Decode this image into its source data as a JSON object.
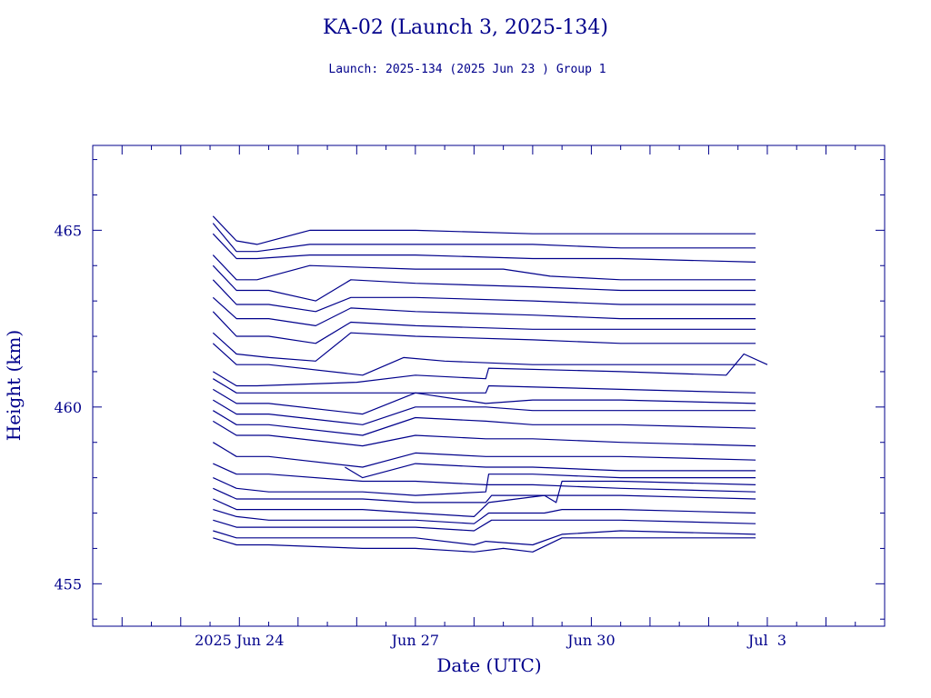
{
  "chart_data": {
    "type": "line",
    "title": "KA-02 (Launch 3, 2025-134)",
    "subtitle": "Launch: 2025-134  (2025 Jun 23 )  Group 1",
    "xlabel": "Date (UTC)",
    "ylabel": "Height (km)",
    "x_unit": "days from 2025 Jun 24 00:00 UTC",
    "xlim": [
      -2.5,
      11
    ],
    "ylim": [
      453.8,
      467.4
    ],
    "x_ticks": [
      {
        "x": 0,
        "label": "2025 Jun 24"
      },
      {
        "x": 3,
        "label": "Jun 27"
      },
      {
        "x": 6,
        "label": "Jun 30"
      },
      {
        "x": 9,
        "label": "Jul  3"
      }
    ],
    "y_ticks": [
      {
        "y": 455,
        "label": "455"
      },
      {
        "y": 460,
        "label": "460"
      },
      {
        "y": 465,
        "label": "465"
      }
    ],
    "grid": false,
    "color": "#00008b",
    "series": [
      {
        "values": [
          [
            -0.45,
            465.4
          ],
          [
            -0.05,
            464.7
          ],
          [
            0.3,
            464.6
          ],
          [
            1.2,
            465.0
          ],
          [
            3.0,
            465.0
          ],
          [
            5.0,
            464.9
          ],
          [
            6.5,
            464.9
          ],
          [
            8.8,
            464.9
          ]
        ]
      },
      {
        "values": [
          [
            -0.45,
            465.2
          ],
          [
            -0.05,
            464.4
          ],
          [
            0.3,
            464.4
          ],
          [
            1.2,
            464.6
          ],
          [
            3.0,
            464.6
          ],
          [
            5.0,
            464.6
          ],
          [
            6.5,
            464.5
          ],
          [
            8.8,
            464.5
          ]
        ]
      },
      {
        "values": [
          [
            -0.45,
            464.9
          ],
          [
            -0.05,
            464.2
          ],
          [
            0.3,
            464.2
          ],
          [
            1.2,
            464.3
          ],
          [
            3.0,
            464.3
          ],
          [
            5.0,
            464.2
          ],
          [
            6.5,
            464.2
          ],
          [
            8.8,
            464.1
          ]
        ]
      },
      {
        "values": [
          [
            -0.45,
            464.3
          ],
          [
            -0.05,
            463.6
          ],
          [
            0.3,
            463.6
          ],
          [
            1.2,
            464.0
          ],
          [
            3.0,
            463.9
          ],
          [
            4.5,
            463.9
          ],
          [
            5.3,
            463.7
          ],
          [
            6.5,
            463.6
          ],
          [
            8.8,
            463.6
          ]
        ]
      },
      {
        "values": [
          [
            -0.45,
            464.0
          ],
          [
            -0.05,
            463.3
          ],
          [
            0.5,
            463.3
          ],
          [
            1.3,
            463.0
          ],
          [
            1.9,
            463.6
          ],
          [
            3.0,
            463.5
          ],
          [
            5.0,
            463.4
          ],
          [
            6.5,
            463.3
          ],
          [
            8.8,
            463.3
          ]
        ]
      },
      {
        "values": [
          [
            -0.45,
            463.6
          ],
          [
            -0.05,
            462.9
          ],
          [
            0.5,
            462.9
          ],
          [
            1.3,
            462.7
          ],
          [
            1.9,
            463.1
          ],
          [
            3.0,
            463.1
          ],
          [
            5.0,
            463.0
          ],
          [
            6.5,
            462.9
          ],
          [
            8.8,
            462.9
          ]
        ]
      },
      {
        "values": [
          [
            -0.45,
            463.1
          ],
          [
            -0.05,
            462.5
          ],
          [
            0.5,
            462.5
          ],
          [
            1.3,
            462.3
          ],
          [
            1.9,
            462.8
          ],
          [
            3.0,
            462.7
          ],
          [
            5.0,
            462.6
          ],
          [
            6.5,
            462.5
          ],
          [
            8.8,
            462.5
          ]
        ]
      },
      {
        "values": [
          [
            -0.45,
            462.7
          ],
          [
            -0.05,
            462.0
          ],
          [
            0.5,
            462.0
          ],
          [
            1.3,
            461.8
          ],
          [
            1.9,
            462.4
          ],
          [
            3.0,
            462.3
          ],
          [
            5.0,
            462.2
          ],
          [
            6.5,
            462.2
          ],
          [
            8.8,
            462.2
          ]
        ]
      },
      {
        "values": [
          [
            -0.45,
            462.1
          ],
          [
            -0.05,
            461.5
          ],
          [
            0.5,
            461.4
          ],
          [
            1.3,
            461.3
          ],
          [
            1.9,
            462.1
          ],
          [
            3.0,
            462.0
          ],
          [
            5.0,
            461.9
          ],
          [
            6.5,
            461.8
          ],
          [
            8.8,
            461.8
          ]
        ]
      },
      {
        "values": [
          [
            -0.45,
            461.8
          ],
          [
            -0.05,
            461.2
          ],
          [
            0.5,
            461.2
          ],
          [
            2.1,
            460.9
          ],
          [
            2.8,
            461.4
          ],
          [
            3.5,
            461.3
          ],
          [
            5.0,
            461.2
          ],
          [
            6.5,
            461.2
          ],
          [
            8.8,
            461.2
          ]
        ]
      },
      {
        "values": [
          [
            -0.45,
            461.0
          ],
          [
            -0.05,
            460.6
          ],
          [
            0.3,
            460.6
          ],
          [
            2.0,
            460.7
          ],
          [
            3.0,
            460.9
          ],
          [
            4.2,
            460.8
          ],
          [
            4.25,
            461.1
          ],
          [
            6.5,
            461.0
          ],
          [
            8.3,
            460.9
          ],
          [
            8.6,
            461.5
          ],
          [
            9.0,
            461.2
          ]
        ]
      },
      {
        "values": [
          [
            -0.45,
            460.8
          ],
          [
            -0.05,
            460.4
          ],
          [
            0.3,
            460.4
          ],
          [
            2.0,
            460.4
          ],
          [
            3.0,
            460.4
          ],
          [
            4.2,
            460.4
          ],
          [
            4.25,
            460.6
          ],
          [
            6.5,
            460.5
          ],
          [
            8.8,
            460.4
          ]
        ]
      },
      {
        "values": [
          [
            -0.45,
            460.5
          ],
          [
            -0.05,
            460.1
          ],
          [
            0.5,
            460.1
          ],
          [
            2.1,
            459.8
          ],
          [
            3.0,
            460.4
          ],
          [
            4.2,
            460.1
          ],
          [
            5.0,
            460.2
          ],
          [
            6.5,
            460.2
          ],
          [
            8.8,
            460.1
          ]
        ]
      },
      {
        "values": [
          [
            -0.45,
            460.2
          ],
          [
            -0.05,
            459.8
          ],
          [
            0.5,
            459.8
          ],
          [
            2.1,
            459.5
          ],
          [
            3.0,
            460.0
          ],
          [
            4.2,
            460.0
          ],
          [
            5.0,
            459.9
          ],
          [
            6.5,
            459.9
          ],
          [
            8.8,
            459.9
          ]
        ]
      },
      {
        "values": [
          [
            -0.45,
            459.9
          ],
          [
            -0.05,
            459.5
          ],
          [
            0.5,
            459.5
          ],
          [
            2.1,
            459.2
          ],
          [
            3.0,
            459.7
          ],
          [
            4.2,
            459.6
          ],
          [
            5.0,
            459.5
          ],
          [
            6.5,
            459.5
          ],
          [
            8.8,
            459.4
          ]
        ]
      },
      {
        "values": [
          [
            -0.45,
            459.6
          ],
          [
            -0.05,
            459.2
          ],
          [
            0.5,
            459.2
          ],
          [
            2.1,
            458.9
          ],
          [
            3.0,
            459.2
          ],
          [
            4.2,
            459.1
          ],
          [
            5.0,
            459.1
          ],
          [
            6.5,
            459.0
          ],
          [
            8.8,
            458.9
          ]
        ]
      },
      {
        "values": [
          [
            -0.45,
            459.0
          ],
          [
            -0.05,
            458.6
          ],
          [
            0.5,
            458.6
          ],
          [
            2.1,
            458.3
          ],
          [
            3.0,
            458.7
          ],
          [
            4.2,
            458.6
          ],
          [
            5.0,
            458.6
          ],
          [
            6.5,
            458.6
          ],
          [
            8.8,
            458.5
          ]
        ]
      },
      {
        "values": [
          [
            1.8,
            458.3
          ],
          [
            2.1,
            458.0
          ],
          [
            3.0,
            458.4
          ],
          [
            4.2,
            458.3
          ],
          [
            5.0,
            458.3
          ],
          [
            6.5,
            458.2
          ],
          [
            8.8,
            458.2
          ]
        ]
      },
      {
        "values": [
          [
            -0.45,
            458.4
          ],
          [
            -0.05,
            458.1
          ],
          [
            0.5,
            458.1
          ],
          [
            2.1,
            457.9
          ],
          [
            3.0,
            457.9
          ],
          [
            4.2,
            457.8
          ],
          [
            5.0,
            457.8
          ],
          [
            6.5,
            457.7
          ],
          [
            8.8,
            457.6
          ]
        ]
      },
      {
        "values": [
          [
            -0.45,
            458.0
          ],
          [
            -0.05,
            457.7
          ],
          [
            0.5,
            457.6
          ],
          [
            2.1,
            457.6
          ],
          [
            3.0,
            457.5
          ],
          [
            4.2,
            457.6
          ],
          [
            4.25,
            458.1
          ],
          [
            5.0,
            458.1
          ],
          [
            6.5,
            458.0
          ],
          [
            8.8,
            458.0
          ]
        ]
      },
      {
        "values": [
          [
            -0.45,
            457.7
          ],
          [
            -0.05,
            457.4
          ],
          [
            0.5,
            457.4
          ],
          [
            2.1,
            457.4
          ],
          [
            3.0,
            457.3
          ],
          [
            4.2,
            457.3
          ],
          [
            4.3,
            457.5
          ],
          [
            5.0,
            457.5
          ],
          [
            6.5,
            457.5
          ],
          [
            8.8,
            457.4
          ]
        ]
      },
      {
        "values": [
          [
            -0.45,
            457.4
          ],
          [
            -0.05,
            457.1
          ],
          [
            0.5,
            457.1
          ],
          [
            2.1,
            457.1
          ],
          [
            3.0,
            457.0
          ],
          [
            4.0,
            456.9
          ],
          [
            4.25,
            457.3
          ],
          [
            5.2,
            457.5
          ],
          [
            5.4,
            457.3
          ],
          [
            5.5,
            457.9
          ],
          [
            6.5,
            457.9
          ],
          [
            8.8,
            457.8
          ]
        ]
      },
      {
        "values": [
          [
            -0.45,
            457.1
          ],
          [
            -0.05,
            456.9
          ],
          [
            0.5,
            456.8
          ],
          [
            2.1,
            456.8
          ],
          [
            3.0,
            456.8
          ],
          [
            4.0,
            456.7
          ],
          [
            4.25,
            457.0
          ],
          [
            5.2,
            457.0
          ],
          [
            5.5,
            457.1
          ],
          [
            6.5,
            457.1
          ],
          [
            8.8,
            457.0
          ]
        ]
      },
      {
        "values": [
          [
            -0.45,
            456.8
          ],
          [
            -0.05,
            456.6
          ],
          [
            0.5,
            456.6
          ],
          [
            2.1,
            456.6
          ],
          [
            3.0,
            456.6
          ],
          [
            4.0,
            456.5
          ],
          [
            4.3,
            456.8
          ],
          [
            5.0,
            456.8
          ],
          [
            6.5,
            456.8
          ],
          [
            8.8,
            456.7
          ]
        ]
      },
      {
        "values": [
          [
            -0.45,
            456.5
          ],
          [
            -0.05,
            456.3
          ],
          [
            0.5,
            456.3
          ],
          [
            2.1,
            456.3
          ],
          [
            3.0,
            456.3
          ],
          [
            4.0,
            456.1
          ],
          [
            4.2,
            456.2
          ],
          [
            5.0,
            456.1
          ],
          [
            5.5,
            456.4
          ],
          [
            6.5,
            456.5
          ],
          [
            8.8,
            456.4
          ]
        ]
      },
      {
        "values": [
          [
            -0.45,
            456.3
          ],
          [
            -0.05,
            456.1
          ],
          [
            0.5,
            456.1
          ],
          [
            2.1,
            456.0
          ],
          [
            3.0,
            456.0
          ],
          [
            4.0,
            455.9
          ],
          [
            4.5,
            456.0
          ],
          [
            5.0,
            455.9
          ],
          [
            5.5,
            456.3
          ],
          [
            6.5,
            456.3
          ],
          [
            8.8,
            456.3
          ]
        ]
      }
    ]
  }
}
